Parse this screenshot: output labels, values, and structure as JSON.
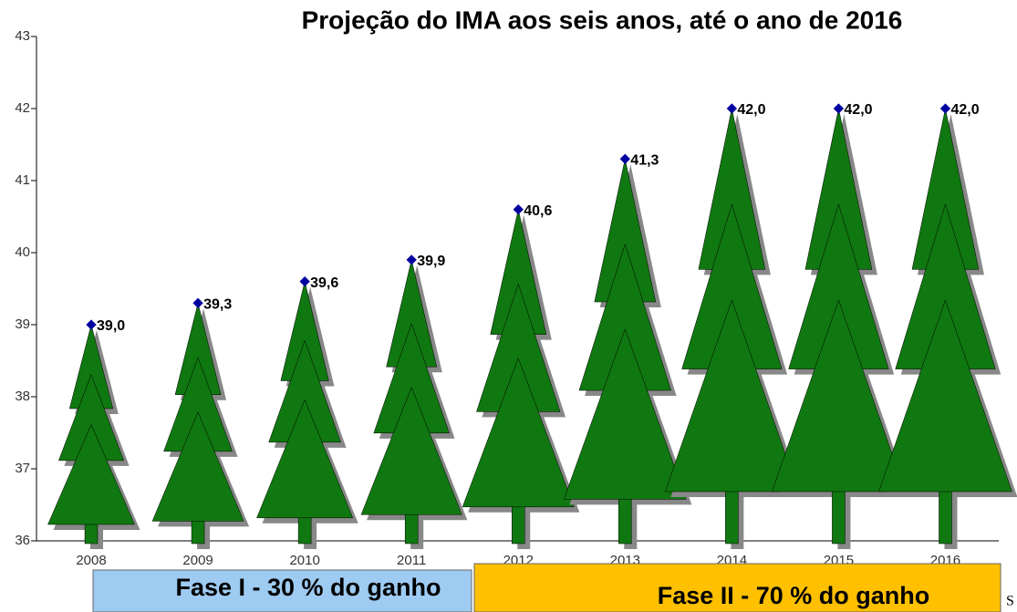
{
  "chart_data": {
    "type": "pictograph",
    "title": "Projeção do IMA aos seis anos, até o ano de 2016",
    "categories": [
      "2008",
      "2009",
      "2010",
      "2011",
      "2012",
      "2013",
      "2014",
      "2015",
      "2016"
    ],
    "values": [
      39.0,
      39.3,
      39.6,
      39.9,
      40.6,
      41.3,
      42.0,
      42.0,
      42.0
    ],
    "value_labels": [
      "39,0",
      "39,3",
      "39,6",
      "39,9",
      "40,6",
      "41,3",
      "42,0",
      "42,0",
      "42,0"
    ],
    "color": "#107810",
    "marker_color": "#0000a0",
    "ylim": [
      36,
      43
    ],
    "yticks": [
      36,
      37,
      38,
      39,
      40,
      41,
      42,
      43
    ],
    "annotations": [
      "Fase I  - 30 % do ganho",
      "Fase II  - 70 % do ganho",
      "S"
    ]
  }
}
